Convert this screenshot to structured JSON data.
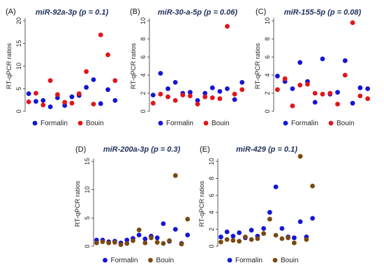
{
  "chart_data": [
    {
      "type": "scatter",
      "panel_label": "(A)",
      "title": "miR-92a-3p (p = 0.1)",
      "xlabel": "",
      "ylabel": "RT-qPCR ratios",
      "ylim": [
        0,
        20
      ],
      "yticks": [
        "0",
        "5",
        "10",
        "15",
        "20"
      ],
      "xlim": [
        0.5,
        13.5
      ],
      "grid": false,
      "legend_position": "bottom",
      "series": [
        {
          "name": "Formalin",
          "color": "#1515d6",
          "x": [
            1,
            2,
            3,
            4,
            5,
            6,
            7,
            8,
            9,
            10,
            11,
            12,
            13
          ],
          "y": [
            3.9,
            2.2,
            2.4,
            1.0,
            3.0,
            1.3,
            3.2,
            3.5,
            5.3,
            7.0,
            1.7,
            4.8,
            2.4
          ]
        },
        {
          "name": "Bouin",
          "color": "#e0161b",
          "x": [
            1,
            2,
            3,
            4,
            5,
            6,
            7,
            8,
            9,
            10,
            11,
            12,
            13
          ],
          "y": [
            2.1,
            4.0,
            1.4,
            6.8,
            3.7,
            2.0,
            1.8,
            3.9,
            8.8,
            1.6,
            16.9,
            12.5,
            6.8
          ]
        }
      ]
    },
    {
      "type": "scatter",
      "panel_label": "(B)",
      "title": "miR-30-a-5p (p = 0.06)",
      "xlabel": "",
      "ylabel": "RT-qPCR ratios",
      "ylim": [
        0,
        10
      ],
      "yticks": [
        "0",
        "2",
        "4",
        "6",
        "8",
        "10"
      ],
      "xlim": [
        0.5,
        13.5
      ],
      "grid": false,
      "legend_position": "bottom",
      "series": [
        {
          "name": "Formalin",
          "color": "#1515d6",
          "x": [
            1,
            2,
            3,
            4,
            5,
            6,
            7,
            8,
            9,
            10,
            11,
            12,
            13
          ],
          "y": [
            1.8,
            4.2,
            2.5,
            3.2,
            2.0,
            2.1,
            1.2,
            2.0,
            2.6,
            2.2,
            2.5,
            1.3,
            3.2
          ]
        },
        {
          "name": "Bouin",
          "color": "#e0161b",
          "x": [
            1,
            2,
            3,
            4,
            5,
            6,
            7,
            8,
            9,
            10,
            11,
            12,
            13
          ],
          "y": [
            0.9,
            1.9,
            1.6,
            1.2,
            1.8,
            1.7,
            0.8,
            1.6,
            1.5,
            1.4,
            9.4,
            1.9,
            2.4
          ]
        }
      ]
    },
    {
      "type": "scatter",
      "panel_label": "(C)",
      "title": "miR-155-5p (p = 0.08)",
      "xlabel": "",
      "ylabel": "RT-qPCR ratios",
      "ylim": [
        0,
        10
      ],
      "yticks": [
        "0",
        "2",
        "4",
        "6",
        "8",
        "10"
      ],
      "xlim": [
        0.5,
        13.5
      ],
      "grid": false,
      "legend_position": "bottom",
      "series": [
        {
          "name": "Formalin",
          "color": "#1515d6",
          "x": [
            1,
            2,
            3,
            4,
            5,
            6,
            7,
            8,
            9,
            10,
            11,
            12,
            13
          ],
          "y": [
            3.9,
            3.3,
            2.5,
            5.4,
            3.3,
            1.0,
            5.8,
            1.9,
            2.1,
            5.6,
            0.9,
            2.6,
            2.5
          ]
        },
        {
          "name": "Bouin",
          "color": "#e0161b",
          "x": [
            1,
            2,
            3,
            4,
            5,
            6,
            7,
            8,
            9,
            10,
            11,
            12,
            13
          ],
          "y": [
            2.4,
            3.6,
            0.6,
            2.9,
            3.0,
            2.0,
            1.9,
            2.0,
            0.8,
            4.0,
            9.8,
            1.7,
            1.4
          ]
        }
      ]
    },
    {
      "type": "scatter",
      "panel_label": "(D)",
      "title": "miR-200a-3p (p = 0.3)",
      "xlabel": "",
      "ylabel": "RT-qPCR ratios",
      "ylim": [
        0,
        15
      ],
      "yticks": [
        "0",
        "5",
        "10",
        "15"
      ],
      "xlim": [
        0.5,
        16.5
      ],
      "grid": false,
      "legend_position": "bottom",
      "series": [
        {
          "name": "Formalin",
          "color": "#1515d6",
          "x": [
            1,
            2,
            3,
            4,
            5,
            6,
            7,
            8,
            9,
            10,
            11,
            12,
            13,
            14,
            15,
            16
          ],
          "y": [
            1.1,
            1.1,
            0.8,
            0.9,
            0.6,
            1.1,
            1.4,
            2.0,
            1.3,
            1.8,
            1.5,
            4.0,
            0.9,
            3.0,
            0.5,
            2.0
          ]
        },
        {
          "name": "Bouin",
          "color": "#7a4a10",
          "x": [
            1,
            2,
            3,
            4,
            5,
            6,
            7,
            8,
            9,
            10,
            11,
            12,
            13,
            14,
            15,
            16
          ],
          "y": [
            0.6,
            0.8,
            0.6,
            0.7,
            0.3,
            0.5,
            1.0,
            2.9,
            0.6,
            1.5,
            0.7,
            0.5,
            1.0,
            12.5,
            0.4,
            4.8
          ]
        }
      ]
    },
    {
      "type": "scatter",
      "panel_label": "(E)",
      "title": "miR-429 (p = 0.1)",
      "xlabel": "",
      "ylabel": "RT-qPCR ratios",
      "ylim": [
        0,
        10
      ],
      "yticks": [
        "0",
        "2",
        "4",
        "6",
        "8",
        "10"
      ],
      "xlim": [
        0.5,
        16.5
      ],
      "grid": false,
      "legend_position": "bottom",
      "series": [
        {
          "name": "Formalin",
          "color": "#1515d6",
          "x": [
            1,
            2,
            3,
            4,
            5,
            6,
            7,
            8,
            9,
            10,
            11,
            12,
            13,
            14,
            15,
            16
          ],
          "y": [
            1.1,
            1.7,
            1.2,
            1.6,
            1.0,
            1.9,
            1.2,
            2.1,
            4.0,
            7.0,
            2.1,
            1.1,
            1.0,
            2.9,
            1.1,
            3.3
          ]
        },
        {
          "name": "Bouin",
          "color": "#7a4a10",
          "x": [
            1,
            2,
            3,
            4,
            5,
            6,
            7,
            8,
            9,
            10,
            11,
            12,
            13,
            14,
            15,
            16
          ],
          "y": [
            0.5,
            0.8,
            0.7,
            0.6,
            1.1,
            0.8,
            0.9,
            1.5,
            3.2,
            1.3,
            0.9,
            1.0,
            0.4,
            10.6,
            0.8,
            7.1
          ]
        }
      ]
    }
  ]
}
